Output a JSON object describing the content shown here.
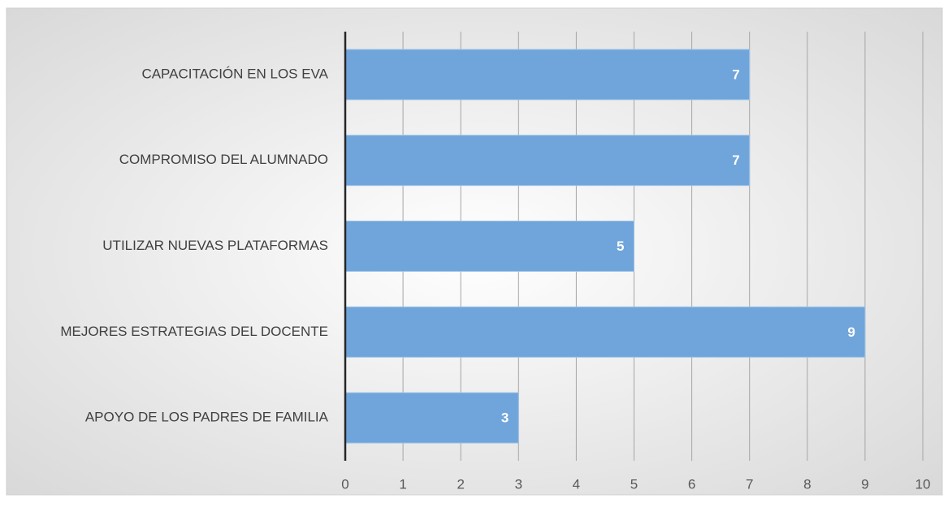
{
  "chart_data": {
    "type": "bar",
    "orientation": "horizontal",
    "categories": [
      "CAPACITACIÓN EN LOS EVA",
      "COMPROMISO DEL ALUMNADO",
      "UTILIZAR NUEVAS PLATAFORMAS",
      "MEJORES ESTRATEGIAS DEL DOCENTE",
      "APOYO DE LOS PADRES DE FAMILIA"
    ],
    "values": [
      7,
      7,
      5,
      9,
      3
    ],
    "color": "#6fa5da",
    "xlim": [
      0,
      10
    ],
    "xticks": [
      0,
      1,
      2,
      3,
      4,
      5,
      6,
      7,
      8,
      9,
      10
    ],
    "grid": true
  }
}
